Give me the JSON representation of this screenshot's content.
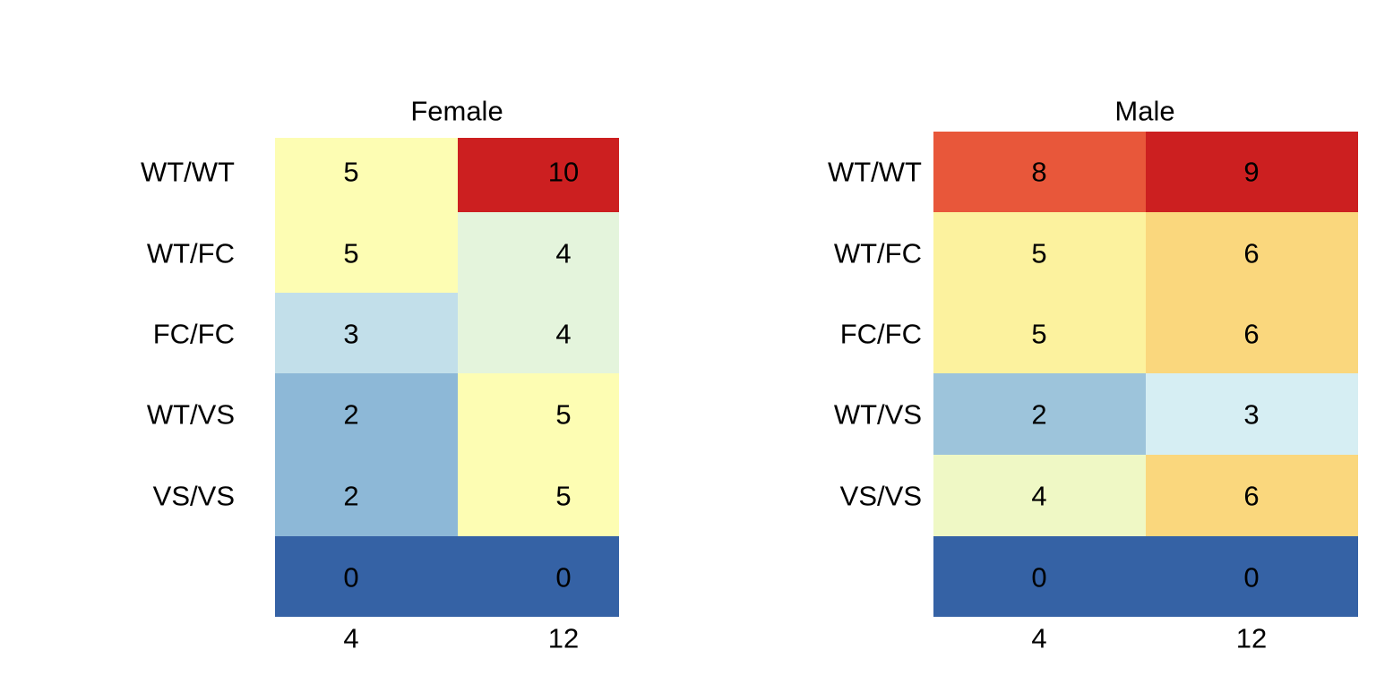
{
  "chart_data": [
    {
      "type": "heatmap",
      "title": "Female",
      "x_tick_labels": [
        "4",
        "12"
      ],
      "row_labels": [
        "WT/WT",
        "WT/FC",
        "FC/FC",
        "WT/VS",
        "VS/VS",
        ""
      ],
      "columns": [
        {
          "x": "4",
          "blocks": [
            {
              "value": 5,
              "color": "#FDFDB3",
              "rows": [
                "WT/WT",
                "WT/FC"
              ]
            },
            {
              "value": 3,
              "color": "#C2DFEA",
              "rows": [
                "FC/FC"
              ]
            },
            {
              "value": 2,
              "color": "#8DB8D7",
              "rows": [
                "WT/VS",
                "VS/VS"
              ]
            },
            {
              "value": 0,
              "color": "#3562A5",
              "rows": [
                ""
              ]
            }
          ]
        },
        {
          "x": "12",
          "blocks": [
            {
              "value": 10,
              "color": "#CC1F20",
              "rows": [
                "WT/WT"
              ]
            },
            {
              "value": 4,
              "color": "#E4F4DC",
              "rows": [
                "WT/FC",
                "FC/FC"
              ]
            },
            {
              "value": 5,
              "color": "#FDFDB3",
              "rows": [
                "WT/VS",
                "VS/VS"
              ]
            },
            {
              "value": 0,
              "color": "#3562A5",
              "rows": [
                ""
              ]
            }
          ]
        }
      ],
      "cell_labels": [
        [
          "5",
          "10"
        ],
        [
          "5",
          "4"
        ],
        [
          "3",
          "4"
        ],
        [
          "2",
          "5"
        ],
        [
          "2",
          "5"
        ],
        [
          "0",
          "0"
        ]
      ]
    },
    {
      "type": "heatmap",
      "title": "Male",
      "x_tick_labels": [
        "4",
        "12"
      ],
      "row_labels": [
        "WT/WT",
        "WT/FC",
        "FC/FC",
        "WT/VS",
        "VS/VS",
        ""
      ],
      "columns": [
        {
          "x": "4",
          "blocks": [
            {
              "value": 8,
              "color": "#E8573A",
              "rows": [
                "WT/WT"
              ]
            },
            {
              "value": 5,
              "color": "#FCF29E",
              "rows": [
                "WT/FC",
                "FC/FC"
              ]
            },
            {
              "value": 2,
              "color": "#9DC4DB",
              "rows": [
                "WT/VS"
              ]
            },
            {
              "value": 4,
              "color": "#EFF8C5",
              "rows": [
                "VS/VS"
              ]
            },
            {
              "value": 0,
              "color": "#3562A5",
              "rows": [
                ""
              ]
            }
          ]
        },
        {
          "x": "12",
          "blocks": [
            {
              "value": 9,
              "color": "#CC1F20",
              "rows": [
                "WT/WT"
              ]
            },
            {
              "value": 6,
              "color": "#FAD77D",
              "rows": [
                "WT/FC",
                "FC/FC"
              ]
            },
            {
              "value": 3,
              "color": "#D6EEF3",
              "rows": [
                "WT/VS"
              ]
            },
            {
              "value": 6,
              "color": "#FAD77D",
              "rows": [
                "VS/VS"
              ]
            },
            {
              "value": 0,
              "color": "#3562A5",
              "rows": [
                ""
              ]
            }
          ]
        }
      ],
      "cell_labels": [
        [
          "8",
          "9"
        ],
        [
          "5",
          "6"
        ],
        [
          "5",
          "6"
        ],
        [
          "2",
          "3"
        ],
        [
          "4",
          "6"
        ],
        [
          "0",
          "0"
        ]
      ]
    }
  ]
}
